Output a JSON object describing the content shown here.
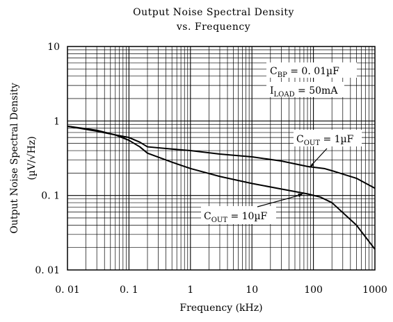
{
  "chart_data": {
    "type": "line",
    "title": "Output Noise Spectral Density",
    "subtitle": "vs. Frequency",
    "xlabel": "Frequency (kHz)",
    "ylabel": "Output Noise Spectral Density",
    "ylabel_unit": "(µV/√Hz)",
    "x_scale": "log",
    "y_scale": "log",
    "xlim": [
      0.01,
      1000
    ],
    "ylim": [
      0.01,
      10
    ],
    "x_ticks": [
      {
        "value": 0.01,
        "label": "0. 01"
      },
      {
        "value": 0.1,
        "label": "0. 1"
      },
      {
        "value": 1,
        "label": "1"
      },
      {
        "value": 10,
        "label": "10"
      },
      {
        "value": 100,
        "label": "100"
      },
      {
        "value": 1000,
        "label": "1000"
      }
    ],
    "y_ticks": [
      {
        "value": 0.01,
        "label": "0. 01"
      },
      {
        "value": 0.1,
        "label": "0. 1"
      },
      {
        "value": 1,
        "label": "1"
      },
      {
        "value": 10,
        "label": "10"
      }
    ],
    "grid": true,
    "series": [
      {
        "name": "COUT = 1µF",
        "x": [
          0.01,
          0.03,
          0.06,
          0.1,
          0.15,
          0.2,
          0.5,
          1,
          3,
          10,
          30,
          80,
          150,
          200,
          500,
          1000
        ],
        "y": [
          0.85,
          0.75,
          0.65,
          0.6,
          0.52,
          0.45,
          0.42,
          0.4,
          0.36,
          0.33,
          0.29,
          0.245,
          0.23,
          0.215,
          0.17,
          0.125
        ]
      },
      {
        "name": "COUT = 10µF",
        "x": [
          0.01,
          0.03,
          0.06,
          0.1,
          0.15,
          0.2,
          0.5,
          1,
          3,
          10,
          30,
          80,
          130,
          200,
          500,
          1000
        ],
        "y": [
          0.85,
          0.73,
          0.65,
          0.55,
          0.45,
          0.37,
          0.28,
          0.23,
          0.18,
          0.145,
          0.122,
          0.105,
          0.095,
          0.08,
          0.04,
          0.019
        ]
      }
    ],
    "annotations": {
      "cbp": {
        "main": "C",
        "sub": "BP",
        "rest": " = 0. 01µF"
      },
      "iload": {
        "main": "I",
        "sub": "LOAD",
        "rest": " = 50mA"
      },
      "cout1": {
        "main": "C",
        "sub": "OUT",
        "rest": " = 1µF"
      },
      "cout10": {
        "main": "C",
        "sub": "OUT",
        "rest": " = 10µF"
      }
    }
  }
}
